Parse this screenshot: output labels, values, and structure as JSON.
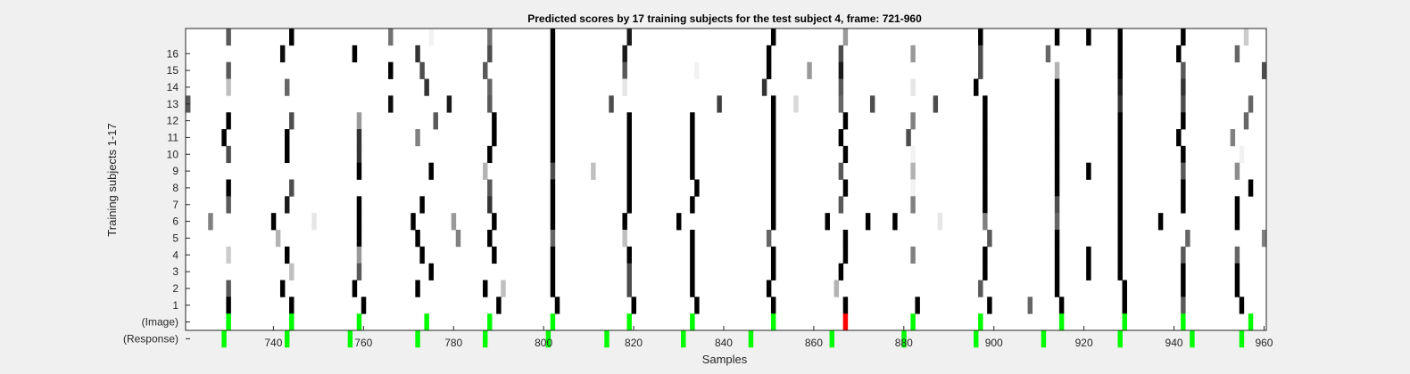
{
  "chart_data": {
    "type": "heatmap",
    "title": "Predicted scores by 17 training subjects for the test subject 4, frame: 721-960",
    "xlabel": "Samples",
    "ylabel": "Training subjects 1-17",
    "xlim": [
      721,
      960
    ],
    "xticks": [
      "740",
      "760",
      "780",
      "800",
      "820",
      "840",
      "860",
      "880",
      "900",
      "920",
      "940",
      "960"
    ],
    "yticks": [
      "16",
      "15",
      "14",
      "13",
      "12",
      "11",
      "10",
      "9",
      "8",
      "7",
      "6",
      "5",
      "4",
      "3",
      "2",
      "1",
      "(Image)",
      "(Response)"
    ],
    "grid": false,
    "colors": {
      "plot_bg": "#ffffff",
      "figure_bg": "#f0f0f0",
      "green": "#00ff00",
      "red": "#ff0000",
      "axis": "#262626"
    },
    "image_row": {
      "green": [
        730,
        744,
        759,
        774,
        788,
        802,
        819,
        833,
        851,
        882,
        897,
        915,
        929,
        942,
        957
      ],
      "red": [
        867
      ]
    },
    "response_row": [
      729,
      743,
      757,
      772,
      787,
      801,
      814,
      831,
      846,
      864,
      880,
      896,
      911,
      928,
      944,
      955
    ],
    "rows": [
      {
        "row": 17,
        "marks": [
          [
            730,
            0.35
          ],
          [
            744,
            0
          ],
          [
            766,
            0.45
          ],
          [
            775,
            0.95
          ],
          [
            788,
            0.45
          ],
          [
            802,
            0
          ],
          [
            819,
            0.1
          ],
          [
            851,
            0
          ],
          [
            867,
            0.6
          ],
          [
            897,
            0
          ],
          [
            914,
            0
          ],
          [
            921,
            0
          ],
          [
            928,
            0
          ],
          [
            942,
            0
          ],
          [
            956,
            0.8
          ]
        ]
      },
      {
        "row": 16,
        "marks": [
          [
            742,
            0.05
          ],
          [
            758,
            0
          ],
          [
            772,
            0.2
          ],
          [
            788,
            0.3
          ],
          [
            802,
            0
          ],
          [
            818,
            0.1
          ],
          [
            850,
            0
          ],
          [
            866,
            0.3
          ],
          [
            882,
            0.6
          ],
          [
            897,
            0.3
          ],
          [
            912,
            0.4
          ],
          [
            928,
            0
          ],
          [
            941,
            0
          ],
          [
            954,
            0.4
          ]
        ]
      },
      {
        "row": 15,
        "marks": [
          [
            730,
            0.35
          ],
          [
            766,
            0
          ],
          [
            773,
            0.3
          ],
          [
            787,
            0.35
          ],
          [
            802,
            0
          ],
          [
            818,
            0.35
          ],
          [
            834,
            0.95
          ],
          [
            850,
            0
          ],
          [
            859,
            0.6
          ],
          [
            866,
            0.1
          ],
          [
            897,
            0.3
          ],
          [
            914,
            0.7
          ],
          [
            928,
            0
          ],
          [
            942,
            0.35
          ],
          [
            960,
            0.3
          ]
        ]
      },
      {
        "row": 14,
        "marks": [
          [
            730,
            0.75
          ],
          [
            743,
            0.4
          ],
          [
            774,
            0.2
          ],
          [
            788,
            0.4
          ],
          [
            802,
            0
          ],
          [
            818,
            0.9
          ],
          [
            849,
            0.2
          ],
          [
            866,
            0.35
          ],
          [
            882,
            0.9
          ],
          [
            896,
            0
          ],
          [
            914,
            0
          ],
          [
            928,
            0.1
          ],
          [
            942,
            0.2
          ]
        ]
      },
      {
        "row": 13,
        "marks": [
          [
            721,
            0.35
          ],
          [
            766,
            0.05
          ],
          [
            779,
            0.1
          ],
          [
            788,
            0.35
          ],
          [
            802,
            0
          ],
          [
            815,
            0.3
          ],
          [
            839,
            0.25
          ],
          [
            851,
            0
          ],
          [
            856,
            0.85
          ],
          [
            866,
            0.4
          ],
          [
            873,
            0.3
          ],
          [
            887,
            0.3
          ],
          [
            898,
            0
          ],
          [
            914,
            0
          ],
          [
            928,
            0.2
          ],
          [
            942,
            0.3
          ],
          [
            957,
            0.4
          ]
        ]
      },
      {
        "row": 12,
        "marks": [
          [
            730,
            0
          ],
          [
            744,
            0.3
          ],
          [
            759,
            0.6
          ],
          [
            776,
            0.35
          ],
          [
            789,
            0
          ],
          [
            802,
            0
          ],
          [
            819,
            0
          ],
          [
            833,
            0
          ],
          [
            851,
            0
          ],
          [
            867,
            0
          ],
          [
            882,
            0.5
          ],
          [
            898,
            0
          ],
          [
            914,
            0
          ],
          [
            928,
            0
          ],
          [
            942,
            0
          ],
          [
            956,
            0.4
          ]
        ]
      },
      {
        "row": 11,
        "marks": [
          [
            729,
            0
          ],
          [
            743,
            0
          ],
          [
            759,
            0.2
          ],
          [
            772,
            0.5
          ],
          [
            789,
            0
          ],
          [
            802,
            0
          ],
          [
            819,
            0
          ],
          [
            833,
            0
          ],
          [
            851,
            0
          ],
          [
            866,
            0
          ],
          [
            881,
            0.3
          ],
          [
            898,
            0
          ],
          [
            914,
            0
          ],
          [
            928,
            0
          ],
          [
            941,
            0
          ],
          [
            953,
            0.5
          ]
        ]
      },
      {
        "row": 10,
        "marks": [
          [
            730,
            0.3
          ],
          [
            743,
            0
          ],
          [
            759,
            0.2
          ],
          [
            788,
            0
          ],
          [
            802,
            0
          ],
          [
            819,
            0
          ],
          [
            833,
            0
          ],
          [
            851,
            0
          ],
          [
            867,
            0
          ],
          [
            882,
            0.95
          ],
          [
            898,
            0
          ],
          [
            914,
            0
          ],
          [
            928,
            0
          ],
          [
            942,
            0
          ],
          [
            955,
            0.95
          ]
        ]
      },
      {
        "row": 9,
        "marks": [
          [
            759,
            0
          ],
          [
            775,
            0
          ],
          [
            787,
            0.7
          ],
          [
            802,
            0.3
          ],
          [
            811,
            0.75
          ],
          [
            819,
            0
          ],
          [
            833,
            0
          ],
          [
            851,
            0
          ],
          [
            866,
            0.35
          ],
          [
            882,
            0.7
          ],
          [
            898,
            0
          ],
          [
            914,
            0
          ],
          [
            921,
            0
          ],
          [
            928,
            0
          ],
          [
            942,
            0.35
          ],
          [
            954,
            0.55
          ]
        ]
      },
      {
        "row": 8,
        "marks": [
          [
            730,
            0
          ],
          [
            744,
            0.3
          ],
          [
            788,
            0.35
          ],
          [
            802,
            0
          ],
          [
            819,
            0
          ],
          [
            834,
            0
          ],
          [
            851,
            0
          ],
          [
            867,
            0
          ],
          [
            882,
            0.95
          ],
          [
            898,
            0
          ],
          [
            914,
            0
          ],
          [
            928,
            0
          ],
          [
            942,
            0
          ],
          [
            957,
            0
          ]
        ]
      },
      {
        "row": 7,
        "marks": [
          [
            730,
            0.35
          ],
          [
            743,
            0.1
          ],
          [
            759,
            0
          ],
          [
            773,
            0
          ],
          [
            788,
            0.2
          ],
          [
            802,
            0
          ],
          [
            819,
            0
          ],
          [
            833,
            0
          ],
          [
            851,
            0
          ],
          [
            866,
            0.35
          ],
          [
            882,
            0.5
          ],
          [
            898,
            0
          ],
          [
            914,
            0.3
          ],
          [
            928,
            0
          ],
          [
            942,
            0
          ],
          [
            954,
            0
          ]
        ]
      },
      {
        "row": 6,
        "marks": [
          [
            726,
            0.5
          ],
          [
            740,
            0
          ],
          [
            749,
            0.9
          ],
          [
            759,
            0
          ],
          [
            771,
            0
          ],
          [
            780,
            0.6
          ],
          [
            789,
            0
          ],
          [
            802,
            0
          ],
          [
            818,
            0
          ],
          [
            830,
            0
          ],
          [
            851,
            0
          ],
          [
            863,
            0
          ],
          [
            872,
            0
          ],
          [
            878,
            0
          ],
          [
            888,
            0.9
          ],
          [
            898,
            0.5
          ],
          [
            914,
            0.4
          ],
          [
            928,
            0
          ],
          [
            937,
            0
          ],
          [
            954,
            0
          ]
        ]
      },
      {
        "row": 5,
        "marks": [
          [
            741,
            0.7
          ],
          [
            759,
            0
          ],
          [
            772,
            0
          ],
          [
            781,
            0.5
          ],
          [
            788,
            0
          ],
          [
            802,
            0.4
          ],
          [
            818,
            0.75
          ],
          [
            833,
            0
          ],
          [
            850,
            0.4
          ],
          [
            867,
            0
          ],
          [
            899,
            0.35
          ],
          [
            914,
            0
          ],
          [
            928,
            0
          ],
          [
            943,
            0.4
          ],
          [
            960,
            0.5
          ]
        ]
      },
      {
        "row": 4,
        "marks": [
          [
            730,
            0.8
          ],
          [
            743,
            0
          ],
          [
            759,
            0.6
          ],
          [
            773,
            0
          ],
          [
            789,
            0
          ],
          [
            802,
            0
          ],
          [
            819,
            0
          ],
          [
            833,
            0
          ],
          [
            851,
            0
          ],
          [
            867,
            0
          ],
          [
            882,
            0.5
          ],
          [
            898,
            0
          ],
          [
            914,
            0
          ],
          [
            921,
            0
          ],
          [
            928,
            0
          ],
          [
            942,
            0.35
          ],
          [
            954,
            0.4
          ]
        ]
      },
      {
        "row": 3,
        "marks": [
          [
            744,
            0.75
          ],
          [
            759,
            0.35
          ],
          [
            775,
            0
          ],
          [
            802,
            0
          ],
          [
            819,
            0.3
          ],
          [
            833,
            0
          ],
          [
            851,
            0
          ],
          [
            866,
            0
          ],
          [
            898,
            0
          ],
          [
            914,
            0
          ],
          [
            921,
            0
          ],
          [
            928,
            0
          ],
          [
            942,
            0
          ],
          [
            954,
            0
          ]
        ]
      },
      {
        "row": 2,
        "marks": [
          [
            730,
            0.35
          ],
          [
            742,
            0
          ],
          [
            758,
            0
          ],
          [
            772,
            0
          ],
          [
            787,
            0
          ],
          [
            791,
            0.75
          ],
          [
            802,
            0
          ],
          [
            819,
            0.3
          ],
          [
            833,
            0
          ],
          [
            850,
            0
          ],
          [
            865,
            0.7
          ],
          [
            897,
            0.35
          ],
          [
            914,
            0
          ],
          [
            929,
            0
          ],
          [
            942,
            0
          ],
          [
            954,
            0
          ]
        ]
      },
      {
        "row": 1,
        "marks": [
          [
            730,
            0
          ],
          [
            744,
            0
          ],
          [
            760,
            0
          ],
          [
            790,
            0
          ],
          [
            803,
            0
          ],
          [
            820,
            0
          ],
          [
            834,
            0
          ],
          [
            851,
            0
          ],
          [
            867,
            0
          ],
          [
            883,
            0
          ],
          [
            899,
            0
          ],
          [
            908,
            0.4
          ],
          [
            915,
            0
          ],
          [
            929,
            0
          ],
          [
            942,
            0.35
          ],
          [
            955,
            0
          ]
        ]
      }
    ]
  }
}
